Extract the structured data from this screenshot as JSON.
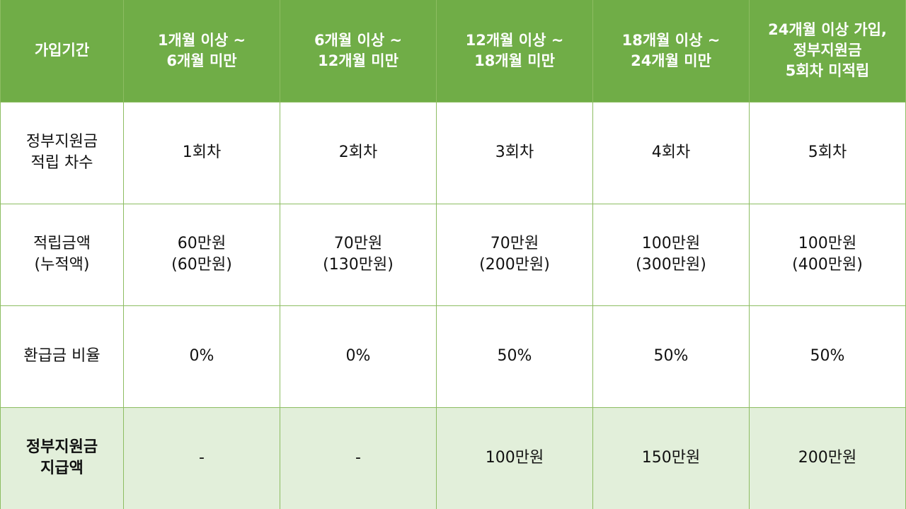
{
  "table": {
    "header": {
      "label": "가입기간",
      "columns": [
        "1개월 이상 ~\n6개월 미만",
        "6개월 이상 ~\n12개월 미만",
        "12개월 이상 ~\n18개월 미만",
        "18개월 이상 ~\n24개월 미만",
        "24개월 이상 가입,\n정부지원금\n5회차 미적립"
      ]
    },
    "rows": [
      {
        "label": "정부지원금\n적립 차수",
        "cells": [
          "1회차",
          "2회차",
          "3회차",
          "4회차",
          "5회차"
        ]
      },
      {
        "label": "적립금액\n(누적액)",
        "cells": [
          "60만원\n(60만원)",
          "70만원\n(130만원)",
          "70만원\n(200만원)",
          "100만원\n(300만원)",
          "100만원\n(400만원)"
        ]
      },
      {
        "label": "환급금 비율",
        "cells": [
          "0%",
          "0%",
          "50%",
          "50%",
          "50%"
        ]
      },
      {
        "label": "정부지원금\n지급액",
        "cells": [
          "-",
          "-",
          "100만원",
          "150만원",
          "200만원"
        ]
      }
    ]
  },
  "colors": {
    "header_bg": "#70ad47",
    "footer_bg": "#e2efda",
    "border": "#8dbd62"
  }
}
